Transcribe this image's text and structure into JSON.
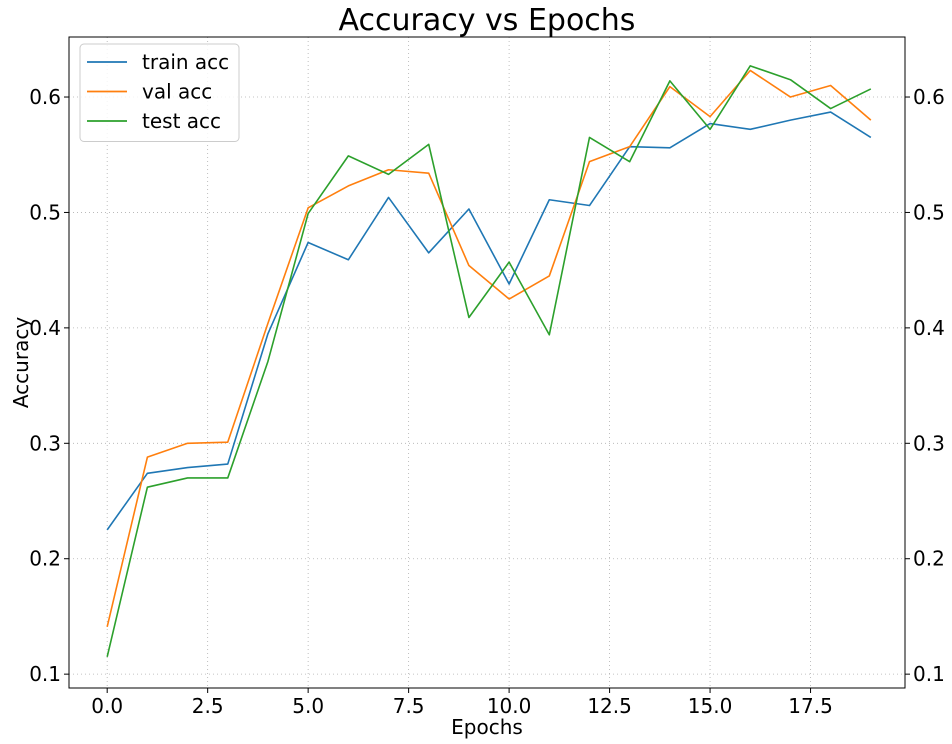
{
  "chart_data": {
    "type": "line",
    "title": "Accuracy vs Epochs",
    "xlabel": "Epochs",
    "ylabel": "Accuracy",
    "xlim": [
      -0.95,
      19.85
    ],
    "ylim": [
      0.088,
      0.652
    ],
    "x_ticks": [
      0.0,
      2.5,
      5.0,
      7.5,
      10.0,
      12.5,
      15.0,
      17.5
    ],
    "x_tick_labels": [
      "0.0",
      "2.5",
      "5.0",
      "7.5",
      "10.0",
      "12.5",
      "15.0",
      "17.5"
    ],
    "y_ticks": [
      0.1,
      0.2,
      0.3,
      0.4,
      0.5,
      0.6
    ],
    "y_tick_labels": [
      "0.1",
      "0.2",
      "0.3",
      "0.4",
      "0.5",
      "0.6"
    ],
    "grid": true,
    "right_axis_labels": true,
    "legend_position": "top-left",
    "x": [
      0,
      1,
      2,
      3,
      4,
      5,
      6,
      7,
      8,
      9,
      10,
      11,
      12,
      13,
      14,
      15,
      16,
      17,
      18,
      19
    ],
    "series": [
      {
        "name": "train acc",
        "color": "#1f77b4",
        "values": [
          0.225,
          0.274,
          0.279,
          0.282,
          0.395,
          0.474,
          0.459,
          0.513,
          0.465,
          0.503,
          0.438,
          0.511,
          0.506,
          0.557,
          0.556,
          0.577,
          0.572,
          0.58,
          0.587,
          0.565
        ]
      },
      {
        "name": "val acc",
        "color": "#ff7f0e",
        "values": [
          0.141,
          0.288,
          0.3,
          0.301,
          0.404,
          0.504,
          0.523,
          0.537,
          0.534,
          0.454,
          0.425,
          0.445,
          0.544,
          0.557,
          0.609,
          0.583,
          0.623,
          0.6,
          0.61,
          0.58
        ]
      },
      {
        "name": "test acc",
        "color": "#2ca02c",
        "values": [
          0.115,
          0.262,
          0.27,
          0.27,
          0.371,
          0.499,
          0.549,
          0.533,
          0.559,
          0.409,
          0.457,
          0.394,
          0.565,
          0.544,
          0.614,
          0.572,
          0.627,
          0.615,
          0.59,
          0.607
        ]
      }
    ]
  }
}
